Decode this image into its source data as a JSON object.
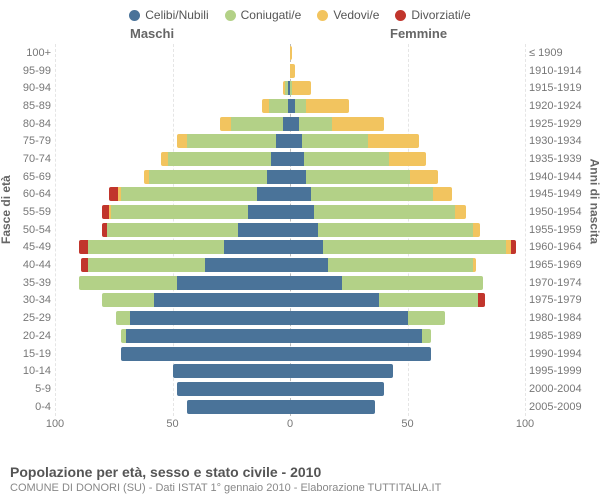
{
  "legend": [
    {
      "label": "Celibi/Nubili",
      "color": "#4a7399"
    },
    {
      "label": "Coniugati/e",
      "color": "#b3d187"
    },
    {
      "label": "Vedovi/e",
      "color": "#f2c45f"
    },
    {
      "label": "Divorziati/e",
      "color": "#c1352c"
    }
  ],
  "header_male": "Maschi",
  "header_female": "Femmine",
  "ylabel_left": "Fasce di età",
  "ylabel_right": "Anni di nascita",
  "xmax": 100,
  "xticks": [
    100,
    50,
    0,
    50,
    100
  ],
  "colors": {
    "celibi": "#4a7399",
    "coniugati": "#b3d187",
    "vedovi": "#f2c45f",
    "divorziati": "#c1352c",
    "grid": "#e5e5e5",
    "center": "#bbbbbb",
    "text": "#777777",
    "bg": "#ffffff"
  },
  "rows": [
    {
      "age": "100+",
      "birth": "≤ 1909",
      "m": {
        "c": 0,
        "m": 0,
        "w": 0,
        "d": 0
      },
      "f": {
        "c": 0,
        "m": 0,
        "w": 1,
        "d": 0
      }
    },
    {
      "age": "95-99",
      "birth": "1910-1914",
      "m": {
        "c": 0,
        "m": 0,
        "w": 0,
        "d": 0
      },
      "f": {
        "c": 0,
        "m": 0,
        "w": 2,
        "d": 0
      }
    },
    {
      "age": "90-94",
      "birth": "1915-1919",
      "m": {
        "c": 1,
        "m": 1,
        "w": 1,
        "d": 0
      },
      "f": {
        "c": 0,
        "m": 1,
        "w": 8,
        "d": 0
      }
    },
    {
      "age": "85-89",
      "birth": "1920-1924",
      "m": {
        "c": 1,
        "m": 8,
        "w": 3,
        "d": 0
      },
      "f": {
        "c": 2,
        "m": 5,
        "w": 18,
        "d": 0
      }
    },
    {
      "age": "80-84",
      "birth": "1925-1929",
      "m": {
        "c": 3,
        "m": 22,
        "w": 5,
        "d": 0
      },
      "f": {
        "c": 4,
        "m": 14,
        "w": 22,
        "d": 0
      }
    },
    {
      "age": "75-79",
      "birth": "1930-1934",
      "m": {
        "c": 6,
        "m": 38,
        "w": 4,
        "d": 0
      },
      "f": {
        "c": 5,
        "m": 28,
        "w": 22,
        "d": 0
      }
    },
    {
      "age": "70-74",
      "birth": "1935-1939",
      "m": {
        "c": 8,
        "m": 44,
        "w": 3,
        "d": 0
      },
      "f": {
        "c": 6,
        "m": 36,
        "w": 16,
        "d": 0
      }
    },
    {
      "age": "65-69",
      "birth": "1940-1944",
      "m": {
        "c": 10,
        "m": 50,
        "w": 2,
        "d": 0
      },
      "f": {
        "c": 7,
        "m": 44,
        "w": 12,
        "d": 0
      }
    },
    {
      "age": "60-64",
      "birth": "1945-1949",
      "m": {
        "c": 14,
        "m": 58,
        "w": 1,
        "d": 4
      },
      "f": {
        "c": 9,
        "m": 52,
        "w": 8,
        "d": 0
      }
    },
    {
      "age": "55-59",
      "birth": "1950-1954",
      "m": {
        "c": 18,
        "m": 58,
        "w": 1,
        "d": 3
      },
      "f": {
        "c": 10,
        "m": 60,
        "w": 5,
        "d": 0
      }
    },
    {
      "age": "50-54",
      "birth": "1955-1959",
      "m": {
        "c": 22,
        "m": 56,
        "w": 0,
        "d": 2
      },
      "f": {
        "c": 12,
        "m": 66,
        "w": 3,
        "d": 0
      }
    },
    {
      "age": "45-49",
      "birth": "1960-1964",
      "m": {
        "c": 28,
        "m": 58,
        "w": 0,
        "d": 4
      },
      "f": {
        "c": 14,
        "m": 78,
        "w": 2,
        "d": 2
      }
    },
    {
      "age": "40-44",
      "birth": "1965-1969",
      "m": {
        "c": 36,
        "m": 50,
        "w": 0,
        "d": 3
      },
      "f": {
        "c": 16,
        "m": 62,
        "w": 1,
        "d": 0
      }
    },
    {
      "age": "35-39",
      "birth": "1970-1974",
      "m": {
        "c": 48,
        "m": 42,
        "w": 0,
        "d": 0
      },
      "f": {
        "c": 22,
        "m": 60,
        "w": 0,
        "d": 0
      }
    },
    {
      "age": "30-34",
      "birth": "1975-1979",
      "m": {
        "c": 58,
        "m": 22,
        "w": 0,
        "d": 0
      },
      "f": {
        "c": 38,
        "m": 42,
        "w": 0,
        "d": 3
      }
    },
    {
      "age": "25-29",
      "birth": "1980-1984",
      "m": {
        "c": 68,
        "m": 6,
        "w": 0,
        "d": 0
      },
      "f": {
        "c": 50,
        "m": 16,
        "w": 0,
        "d": 0
      }
    },
    {
      "age": "20-24",
      "birth": "1985-1989",
      "m": {
        "c": 70,
        "m": 2,
        "w": 0,
        "d": 0
      },
      "f": {
        "c": 56,
        "m": 4,
        "w": 0,
        "d": 0
      }
    },
    {
      "age": "15-19",
      "birth": "1990-1994",
      "m": {
        "c": 72,
        "m": 0,
        "w": 0,
        "d": 0
      },
      "f": {
        "c": 60,
        "m": 0,
        "w": 0,
        "d": 0
      }
    },
    {
      "age": "10-14",
      "birth": "1995-1999",
      "m": {
        "c": 50,
        "m": 0,
        "w": 0,
        "d": 0
      },
      "f": {
        "c": 44,
        "m": 0,
        "w": 0,
        "d": 0
      }
    },
    {
      "age": "5-9",
      "birth": "2000-2004",
      "m": {
        "c": 48,
        "m": 0,
        "w": 0,
        "d": 0
      },
      "f": {
        "c": 40,
        "m": 0,
        "w": 0,
        "d": 0
      }
    },
    {
      "age": "0-4",
      "birth": "2005-2009",
      "m": {
        "c": 44,
        "m": 0,
        "w": 0,
        "d": 0
      },
      "f": {
        "c": 36,
        "m": 0,
        "w": 0,
        "d": 0
      }
    }
  ],
  "footer_title": "Popolazione per età, sesso e stato civile - 2010",
  "footer_sub": "COMUNE DI DONORI (SU) - Dati ISTAT 1° gennaio 2010 - Elaborazione TUTTITALIA.IT"
}
